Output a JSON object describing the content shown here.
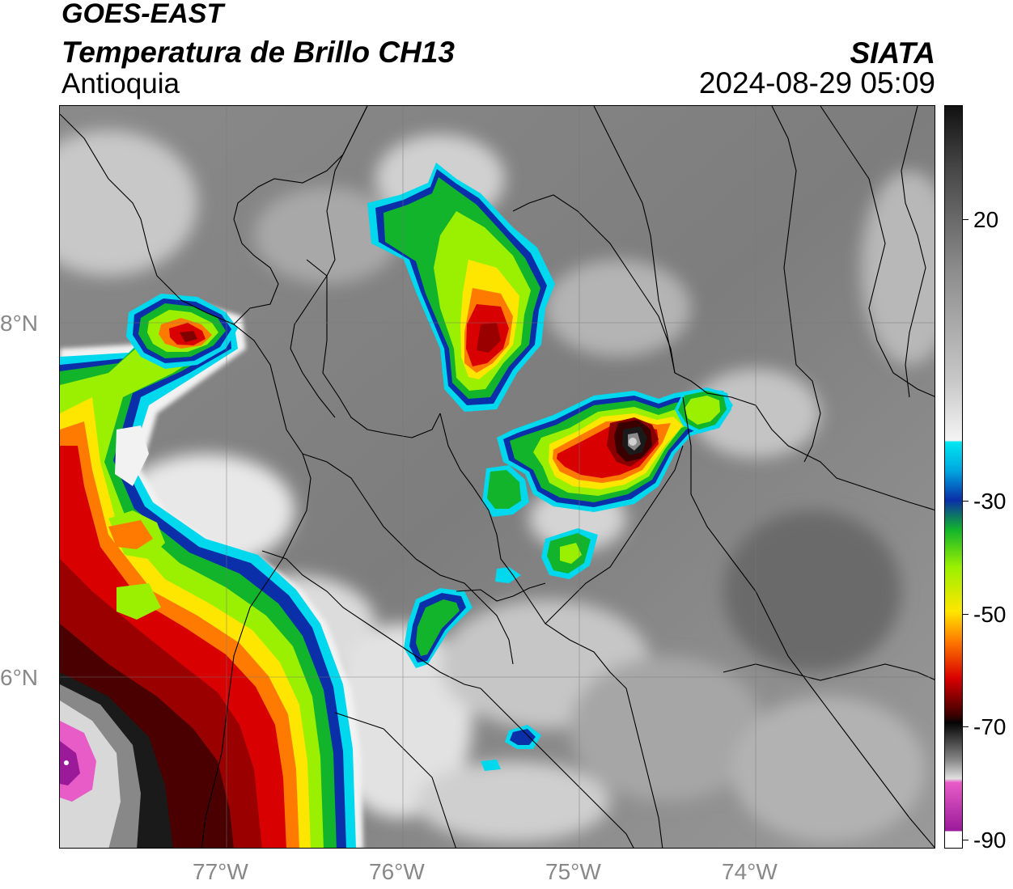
{
  "header": {
    "satellite": "GOES-EAST",
    "product": "Temperatura de Brillo CH13",
    "region": "Antioquia",
    "organization": "SIATA",
    "datetime": "2024-08-29 05:09"
  },
  "map": {
    "lon_range": [
      -77.95,
      -73.0
    ],
    "lat_range": [
      5.0,
      9.2
    ],
    "lat_ticks": [
      {
        "value": 8,
        "label": "8°N"
      },
      {
        "value": 6,
        "label": "6°N"
      }
    ],
    "lon_ticks": [
      {
        "value": -77,
        "label": "77°W"
      },
      {
        "value": -76,
        "label": "76°W"
      },
      {
        "value": -75,
        "label": "75°W"
      },
      {
        "value": -74,
        "label": "74°W"
      }
    ],
    "grid": true
  },
  "colorbar": {
    "range": [
      -90,
      40
    ],
    "ticks": [
      {
        "value": 20,
        "label": "20"
      },
      {
        "value": -30,
        "label": "-30"
      },
      {
        "value": -50,
        "label": "-50"
      },
      {
        "value": -70,
        "label": "-70"
      },
      {
        "value": -90,
        "label": "-90"
      }
    ],
    "colors": {
      "warm_top": "#111111",
      "gray": "#8c8c8c",
      "white": "#f4f4f4",
      "cyan": "#00e6f0",
      "blue": "#0a2fa8",
      "green": "#12b42c",
      "lime": "#9af000",
      "yellow": "#ffe600",
      "orange": "#ff7a00",
      "red": "#d80000",
      "darkred": "#3a0000",
      "black": "#050505",
      "pink": "#e85cc8",
      "purple": "#9a1a9a"
    }
  }
}
